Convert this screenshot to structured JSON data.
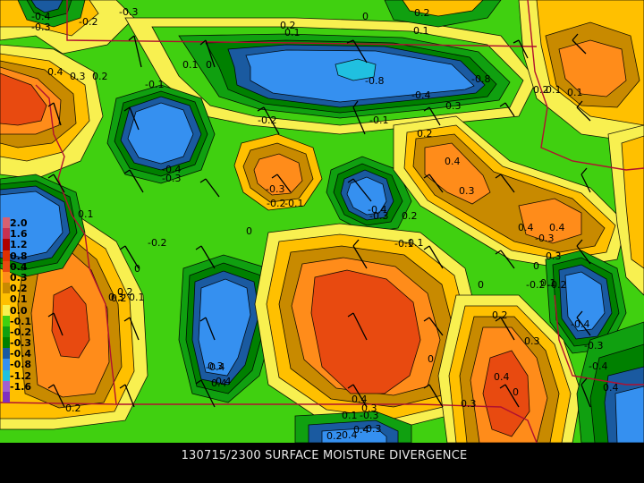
{
  "caption": "130715/2300 SURFACE MOISTURE DIVERGENCE",
  "legend": [
    {
      "label": "2.0",
      "color": "#d86070"
    },
    {
      "label": "1.6",
      "color": "#c83050"
    },
    {
      "label": "1.2",
      "color": "#b00000"
    },
    {
      "label": "0.8",
      "color": "#e03000"
    },
    {
      "label": "0.4",
      "color": "#e84a10"
    },
    {
      "label": "0.3",
      "color": "#ff8c1a"
    },
    {
      "label": "0.2",
      "color": "#c88a00"
    },
    {
      "label": "0.1",
      "color": "#ffc000"
    },
    {
      "label": "0.0",
      "color": "#f8f050"
    },
    {
      "label": "-0.1",
      "color": "#40d010"
    },
    {
      "label": "-0.2",
      "color": "#10a010"
    },
    {
      "label": "-0.3",
      "color": "#008000"
    },
    {
      "label": "-0.4",
      "color": "#1a5aa0"
    },
    {
      "label": "-0.8",
      "color": "#3590f0"
    },
    {
      "label": "-1.2",
      "color": "#20c0e0"
    },
    {
      "label": "-1.6",
      "color": "#a060d0"
    },
    {
      "label": "",
      "color": "#8030c0"
    }
  ],
  "contour_labels": [
    "-0.4",
    "-0.3",
    "-0.2",
    "-0.3",
    "0.2",
    "0.1",
    "0",
    "0.2",
    "0.1",
    "0.1",
    "0",
    "-0.8",
    "-0.8",
    "-0.4",
    "0.4",
    "0.3",
    "0.2",
    "-0.1",
    "-0.2",
    "-0.1",
    "0.2",
    "0.1",
    "0.1",
    "0.2",
    "0.3",
    "-0.4",
    "-0.3",
    "0.4",
    "0.3",
    "-0.3",
    "-0.2",
    "-0.1",
    "-0.4",
    "-0.3",
    "0.2",
    "0.1",
    "0",
    "-0.2",
    "0.4",
    "-0.3",
    "0.4",
    "0.3",
    "0.2",
    "0.3",
    "0.2",
    "0.1",
    "0",
    "-0.2",
    "0",
    "-0.1",
    "0",
    "0.1",
    "0",
    "-0.2",
    "-0.4",
    "-0.3",
    "0",
    "0.2",
    "0.3",
    "0.4",
    "0.3",
    "0.2",
    "0.1",
    "-0.3",
    "-0.4",
    "-0.4",
    "0.4",
    "0.4",
    "0.3",
    "0.2",
    "0.4",
    "0.3",
    "-0.4",
    "-0.4",
    "-0.3",
    "0.4",
    "-0.1"
  ]
}
